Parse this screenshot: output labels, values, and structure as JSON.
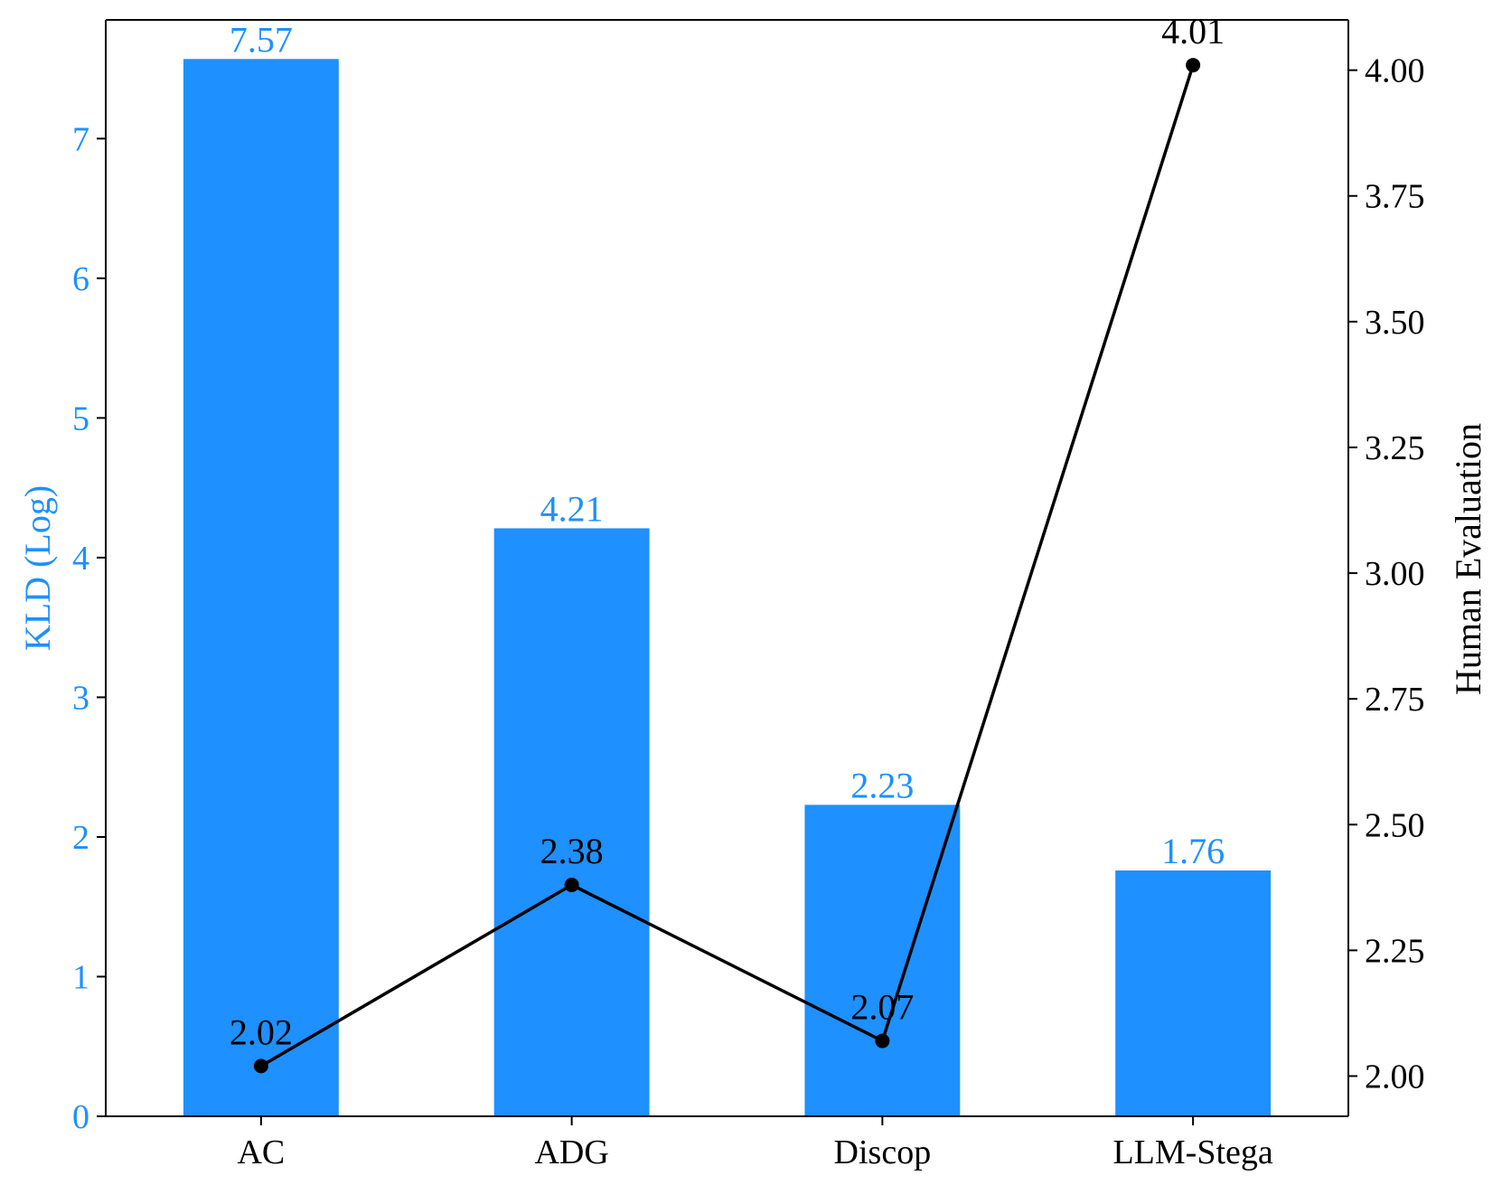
{
  "chart_data": {
    "type": "bar+line",
    "categories": [
      "AC",
      "ADG",
      "Discop",
      "LLM-Stega"
    ],
    "series": [
      {
        "name": "KLD (Log)",
        "type": "bar",
        "axis": "left",
        "values": [
          7.57,
          4.21,
          2.23,
          1.76
        ],
        "labels": [
          "7.57",
          "4.21",
          "2.23",
          "1.76"
        ],
        "color": "#1e90ff"
      },
      {
        "name": "Human Evaluation",
        "type": "line",
        "axis": "right",
        "values": [
          2.02,
          2.38,
          2.07,
          4.01
        ],
        "labels": [
          "2.02",
          "2.38",
          "2.07",
          "4.01"
        ],
        "color": "#000000"
      }
    ],
    "title": "",
    "xlabel": "",
    "ylabel_left": "KLD (Log)",
    "ylabel_right": "Human Evaluation",
    "ylim_left": [
      0,
      7.85
    ],
    "ylim_right": [
      1.92,
      4.1
    ],
    "yticks_left": [
      "0",
      "1",
      "2",
      "3",
      "4",
      "5",
      "6",
      "7"
    ],
    "yticks_right": [
      "2.00",
      "2.25",
      "2.50",
      "2.75",
      "3.00",
      "3.25",
      "3.50",
      "3.75",
      "4.00"
    ],
    "grid": false,
    "legend": "none",
    "left_axis_color": "#1e90ff"
  }
}
